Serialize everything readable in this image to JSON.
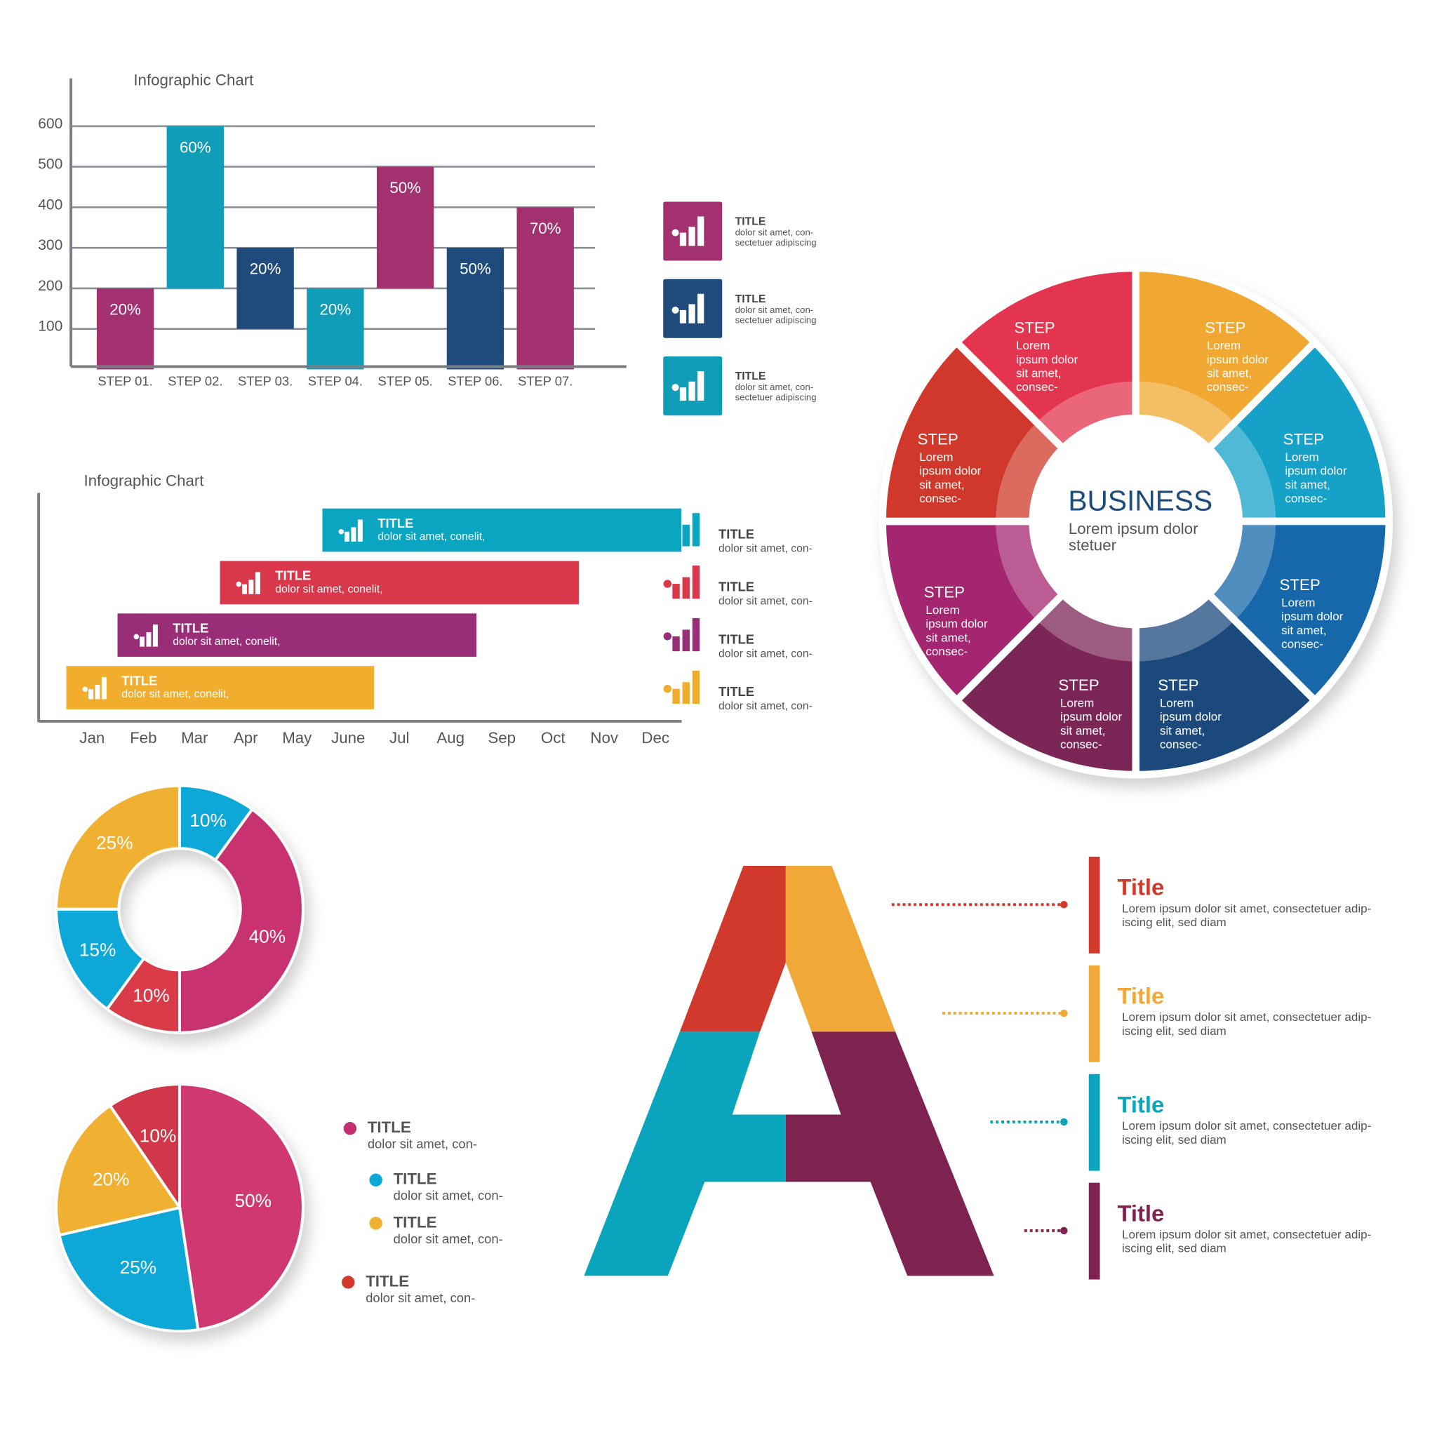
{
  "chart_data": [
    {
      "type": "floating-bar",
      "title": "Infographic Chart",
      "categories": [
        "STEP 01.",
        "STEP 02.",
        "STEP 03.",
        "STEP 04.",
        "STEP 05.",
        "STEP 06.",
        "STEP 07."
      ],
      "low": [
        0,
        200,
        100,
        0,
        200,
        0,
        0
      ],
      "high": [
        200,
        600,
        300,
        200,
        500,
        300,
        400
      ],
      "bar_labels": [
        "20%",
        "60%",
        "20%",
        "20%",
        "50%",
        "50%",
        "70%"
      ],
      "colors": [
        "#a3306f",
        "#0f9db8",
        "#1f4a7c",
        "#0f9db8",
        "#a3306f",
        "#1f4a7c",
        "#a3306f"
      ],
      "ylim": [
        0,
        700
      ],
      "yticks": [
        100,
        200,
        300,
        400,
        500,
        600
      ],
      "grid": true,
      "notes": [
        {
          "title": "TITLE",
          "lines": [
            "dolor sit amet, con-",
            "sectetuer adipiscing"
          ],
          "color": "#a3306f"
        },
        {
          "title": "TITLE",
          "lines": [
            "dolor sit amet, con-",
            "sectetuer adipiscing"
          ],
          "color": "#1f4a7c"
        },
        {
          "title": "TITLE",
          "lines": [
            "dolor sit amet, con-",
            "sectetuer adipiscing"
          ],
          "color": "#0f9db8"
        }
      ]
    },
    {
      "type": "gantt",
      "title": "Infographic Chart",
      "categories": [
        "Jan",
        "Feb",
        "Mar",
        "Apr",
        "May",
        "June",
        "Jul",
        "Aug",
        "Sep",
        "Oct",
        "Nov",
        "Dec"
      ],
      "tasks": [
        {
          "title": "TITLE",
          "text": "dolor sit amet, conelit,",
          "start": "June",
          "end": "Dec",
          "color": "#0aa5c0"
        },
        {
          "title": "TITLE",
          "text": "dolor sit amet, conelit,",
          "start": "Apr",
          "end": "Oct",
          "color": "#d9384a"
        },
        {
          "title": "TITLE",
          "text": "dolor sit amet, conelit,",
          "start": "Feb",
          "end": "Aug",
          "color": "#9a2d78"
        },
        {
          "title": "TITLE",
          "text": "dolor sit amet, conelit,",
          "start": "Jan",
          "end": "June",
          "color": "#f0ad2e"
        }
      ],
      "legend": [
        {
          "title": "TITLE",
          "text": "dolor sit amet, con-",
          "color": "#0aa5c0"
        },
        {
          "title": "TITLE",
          "text": "dolor sit amet, con-",
          "color": "#d9384a"
        },
        {
          "title": "TITLE",
          "text": "dolor sit amet, con-",
          "color": "#9a2d78"
        },
        {
          "title": "TITLE",
          "text": "dolor sit amet, con-",
          "color": "#f0ad2e"
        }
      ]
    },
    {
      "type": "donut",
      "values": [
        10,
        40,
        10,
        15,
        25
      ],
      "value_labels": [
        "10%",
        "40%",
        "10%",
        "15%",
        "25%"
      ],
      "colors": [
        "#0aa8d8",
        "#c9336f",
        "#d93a4a",
        "#0aa8d8",
        "#f0b030"
      ]
    },
    {
      "type": "pie",
      "values": [
        50,
        25,
        20,
        10
      ],
      "value_labels": [
        "50%",
        "25%",
        "20%",
        "10%"
      ],
      "colors": [
        "#cf3770",
        "#0aa8d8",
        "#f0b030",
        "#d0394a"
      ],
      "legend": [
        {
          "title": "TITLE",
          "text": "dolor sit amet, con-",
          "color": "#c4306e"
        },
        {
          "title": "TITLE",
          "text": "dolor sit amet, con-",
          "color": "#0aa8d8"
        },
        {
          "title": "TITLE",
          "text": "dolor sit amet, con-",
          "color": "#f0b030"
        },
        {
          "title": "TITLE",
          "text": "dolor sit amet, con-",
          "color": "#d0392b"
        }
      ]
    }
  ],
  "wheel": {
    "title": "BUSINESS",
    "subtitle": [
      "Lorem ipsum dolor",
      "stetuer"
    ],
    "segments": [
      {
        "label": "STEP",
        "text": [
          "Lorem",
          "ipsum dolor",
          "sit amet,",
          "consec-"
        ],
        "color": "#f0a830"
      },
      {
        "label": "STEP",
        "text": [
          "Lorem",
          "ipsum dolor",
          "sit amet,",
          "consec-"
        ],
        "color": "#12a2c8"
      },
      {
        "label": "STEP",
        "text": [
          "Lorem",
          "ipsum dolor",
          "sit amet,",
          "consec-"
        ],
        "color": "#1868aa"
      },
      {
        "label": "STEP",
        "text": [
          "Lorem",
          "ipsum dolor",
          "sit amet,",
          "consec-"
        ],
        "color": "#1d4a7c"
      },
      {
        "label": "STEP",
        "text": [
          "Lorem",
          "ipsum dolor",
          "sit amet,",
          "consec-"
        ],
        "color": "#7c2558"
      },
      {
        "label": "STEP",
        "text": [
          "Lorem",
          "ipsum dolor",
          "sit amet,",
          "consec-"
        ],
        "color": "#a5286f"
      },
      {
        "label": "STEP",
        "text": [
          "Lorem",
          "ipsum dolor",
          "sit amet,",
          "consec-"
        ],
        "color": "#cf372b"
      },
      {
        "label": "STEP",
        "text": [
          "Lorem",
          "ipsum dolor",
          "sit amet,",
          "consec-"
        ],
        "color": "#e3344f"
      }
    ]
  },
  "letter": {
    "items": [
      {
        "title": "Title",
        "text": [
          "Lorem ipsum dolor sit amet, consectetuer adip-",
          "iscing elit, sed diam"
        ],
        "color": "#d0392b"
      },
      {
        "title": "Title",
        "text": [
          "Lorem ipsum dolor sit amet, consectetuer adip-",
          "iscing elit, sed diam"
        ],
        "color": "#f0a838"
      },
      {
        "title": "Title",
        "text": [
          "Lorem ipsum dolor sit amet, consectetuer adip-",
          "iscing elit, sed diam"
        ],
        "color": "#0aa5bd"
      },
      {
        "title": "Title",
        "text": [
          "Lorem ipsum dolor sit amet, consectetuer adip-",
          "iscing elit, sed diam"
        ],
        "color": "#7e2250"
      }
    ]
  }
}
